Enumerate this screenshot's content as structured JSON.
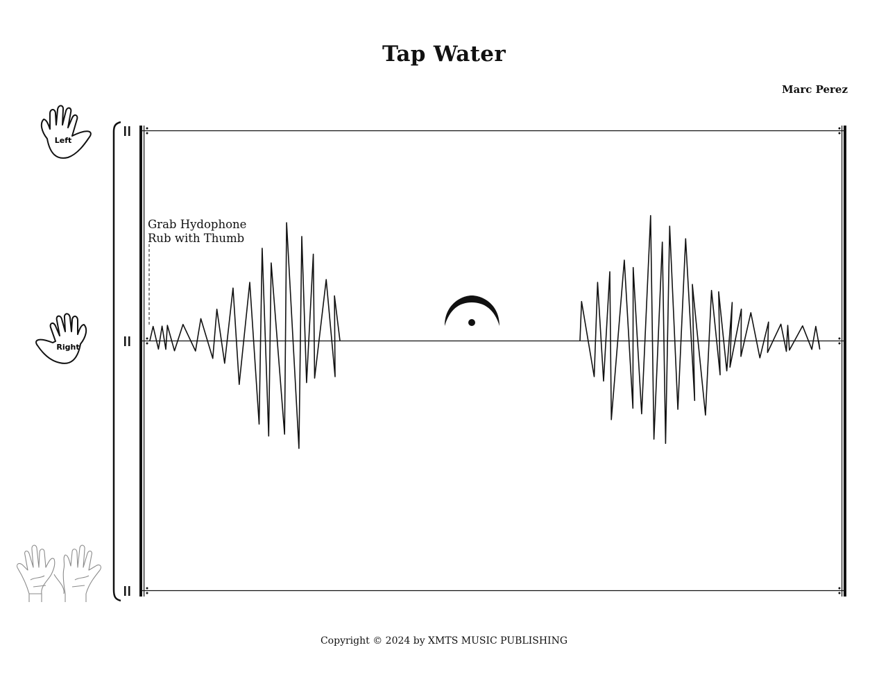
{
  "score": {
    "title": "Tap Water",
    "composer": "Marc Perez",
    "copyright": "Copyright © 2024 by XMTS MUSIC PUBLISHING",
    "instructions": {
      "line1": "Grab Hydophone",
      "line2": "Rub with Thumb"
    },
    "hand_labels": {
      "left": "Left",
      "right": "Right"
    },
    "fermata": "fermata"
  }
}
